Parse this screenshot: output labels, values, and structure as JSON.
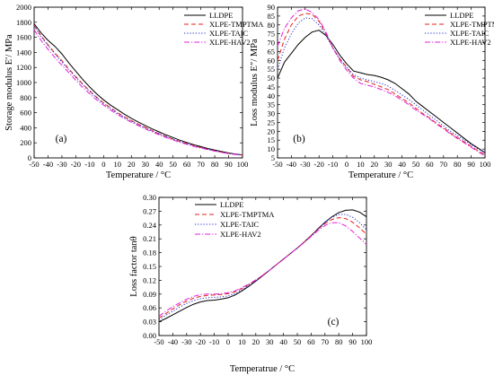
{
  "colors": {
    "LLDPE": "#000000",
    "XLPE-TMPTMA": "#e8201a",
    "XLPE-TAIC": "#1f2fd0",
    "XLPE-HAV2": "#e020d8"
  },
  "chart_data": [
    {
      "type": "line",
      "panel_label": "(a)",
      "xlabel": "Temperature / °C",
      "ylabel": "Storage modulus E′/ MPa",
      "xlim": [
        -50,
        100
      ],
      "ylim": [
        0,
        2000
      ],
      "xticks": [
        -50,
        -40,
        -30,
        -20,
        -10,
        0,
        10,
        20,
        30,
        40,
        50,
        60,
        70,
        80,
        90,
        100
      ],
      "yticks": [
        0,
        200,
        400,
        600,
        800,
        1000,
        1200,
        1400,
        1600,
        1800,
        2000
      ],
      "legend_position": "top-right",
      "x": [
        -50,
        -45,
        -40,
        -35,
        -30,
        -25,
        -20,
        -15,
        -10,
        -5,
        0,
        5,
        10,
        15,
        20,
        25,
        30,
        35,
        40,
        45,
        50,
        55,
        60,
        65,
        70,
        75,
        80,
        85,
        90,
        95,
        100
      ],
      "series": [
        {
          "name": "LLDPE",
          "style": "solid",
          "values": [
            1780,
            1660,
            1560,
            1480,
            1380,
            1260,
            1150,
            1040,
            940,
            850,
            770,
            700,
            640,
            580,
            525,
            475,
            430,
            385,
            345,
            305,
            270,
            235,
            205,
            175,
            150,
            125,
            105,
            85,
            65,
            50,
            40
          ]
        },
        {
          "name": "XLPE-TMPTMA",
          "style": "dashed",
          "values": [
            1760,
            1620,
            1500,
            1390,
            1290,
            1180,
            1080,
            980,
            890,
            805,
            730,
            665,
            600,
            545,
            495,
            448,
            405,
            362,
            322,
            285,
            250,
            218,
            190,
            163,
            138,
            115,
            95,
            77,
            60,
            48,
            38
          ]
        },
        {
          "name": "XLPE-TAIC",
          "style": "dotted",
          "values": [
            1750,
            1610,
            1490,
            1380,
            1270,
            1165,
            1065,
            970,
            880,
            795,
            720,
            655,
            592,
            538,
            488,
            442,
            400,
            358,
            318,
            282,
            248,
            216,
            188,
            161,
            137,
            114,
            94,
            76,
            60,
            47,
            37
          ]
        },
        {
          "name": "XLPE-HAV2",
          "style": "dashdot",
          "values": [
            1700,
            1560,
            1440,
            1330,
            1230,
            1130,
            1030,
            935,
            850,
            770,
            700,
            635,
            575,
            522,
            473,
            428,
            385,
            345,
            306,
            270,
            237,
            207,
            180,
            154,
            131,
            109,
            90,
            73,
            57,
            45,
            35
          ]
        }
      ]
    },
    {
      "type": "line",
      "panel_label": "(b)",
      "xlabel": "Temperature / °C",
      "ylabel": "Loss modulus E″/ MPa",
      "xlim": [
        -50,
        100
      ],
      "ylim": [
        5,
        90
      ],
      "xticks": [
        -50,
        -40,
        -30,
        -20,
        -10,
        0,
        10,
        20,
        30,
        40,
        50,
        60,
        70,
        80,
        90,
        100
      ],
      "yticks": [
        5,
        10,
        15,
        20,
        25,
        30,
        35,
        40,
        45,
        50,
        55,
        60,
        65,
        70,
        75,
        80,
        85,
        90
      ],
      "legend_position": "top-right",
      "x": [
        -50,
        -45,
        -40,
        -35,
        -30,
        -25,
        -20,
        -15,
        -10,
        -5,
        0,
        5,
        10,
        15,
        20,
        25,
        30,
        35,
        40,
        45,
        50,
        55,
        60,
        65,
        70,
        75,
        80,
        85,
        90,
        95,
        100
      ],
      "series": [
        {
          "name": "LLDPE",
          "style": "solid",
          "values": [
            50,
            59,
            64,
            69,
            73,
            76,
            77,
            74,
            69,
            63,
            58,
            54,
            53,
            52,
            51.5,
            50.5,
            49,
            47,
            44,
            41,
            37,
            34,
            31,
            28,
            25,
            22,
            19,
            16,
            13,
            10.5,
            8
          ]
        },
        {
          "name": "XLPE-TMPTMA",
          "style": "dashed",
          "values": [
            60,
            72,
            80,
            85,
            86.5,
            86,
            82,
            75,
            67,
            61,
            56,
            51,
            49,
            48,
            46.5,
            45,
            43.5,
            41,
            38.5,
            36,
            33,
            30,
            27.5,
            24.5,
            22,
            19,
            16.5,
            14,
            11.5,
            9,
            7
          ]
        },
        {
          "name": "XLPE-TAIC",
          "style": "dotted",
          "values": [
            55,
            67,
            75,
            81,
            84,
            83.5,
            80,
            74,
            67,
            61,
            56,
            52,
            50,
            49,
            48,
            47,
            45.5,
            43,
            40.5,
            38,
            35,
            32,
            29,
            26,
            23,
            20,
            17.5,
            15,
            12.5,
            10,
            8
          ]
        },
        {
          "name": "XLPE-HAV2",
          "style": "dashdot",
          "values": [
            68,
            78,
            84,
            88,
            89,
            87,
            83,
            76,
            67,
            60,
            54.5,
            50,
            47,
            46,
            45,
            43.5,
            42,
            40,
            37.5,
            35,
            32,
            29.5,
            27,
            24,
            21.5,
            18.5,
            16,
            13.5,
            11,
            8.5,
            6
          ]
        }
      ]
    },
    {
      "type": "line",
      "panel_label": "(c)",
      "xlabel": "Temperatrue / °C",
      "ylabel": "Loss factor  tanθ",
      "xlim": [
        -50,
        100
      ],
      "ylim": [
        0,
        0.3
      ],
      "xticks": [
        -50,
        -40,
        -30,
        -20,
        -10,
        0,
        10,
        20,
        30,
        40,
        50,
        60,
        70,
        80,
        90,
        100
      ],
      "yticks": [
        0.0,
        0.03,
        0.06,
        0.09,
        0.12,
        0.15,
        0.18,
        0.21,
        0.24,
        0.27,
        0.3
      ],
      "ytick_labels": [
        "0.00",
        "0.03",
        "0.06",
        "0.09",
        "0.12",
        "0.15",
        "0.18",
        "0.21",
        "0.24",
        "0.27",
        "0.30"
      ],
      "legend_position": "top-left",
      "x": [
        -50,
        -45,
        -40,
        -35,
        -30,
        -25,
        -20,
        -15,
        -10,
        -5,
        0,
        5,
        10,
        15,
        20,
        25,
        30,
        35,
        40,
        45,
        50,
        55,
        60,
        65,
        70,
        75,
        80,
        85,
        90,
        95,
        100
      ],
      "series": [
        {
          "name": "LLDPE",
          "style": "solid",
          "values": [
            0.03,
            0.037,
            0.045,
            0.053,
            0.061,
            0.068,
            0.073,
            0.076,
            0.077,
            0.079,
            0.082,
            0.088,
            0.097,
            0.107,
            0.118,
            0.13,
            0.142,
            0.154,
            0.166,
            0.178,
            0.19,
            0.203,
            0.217,
            0.232,
            0.246,
            0.258,
            0.267,
            0.272,
            0.273,
            0.268,
            0.258
          ]
        },
        {
          "name": "XLPE-TMPTMA",
          "style": "dashed",
          "values": [
            0.038,
            0.048,
            0.058,
            0.067,
            0.075,
            0.081,
            0.085,
            0.087,
            0.088,
            0.089,
            0.091,
            0.095,
            0.102,
            0.111,
            0.12,
            0.131,
            0.142,
            0.154,
            0.166,
            0.178,
            0.19,
            0.203,
            0.217,
            0.231,
            0.243,
            0.252,
            0.256,
            0.254,
            0.246,
            0.234,
            0.22
          ]
        },
        {
          "name": "XLPE-TAIC",
          "style": "dotted",
          "values": [
            0.035,
            0.044,
            0.053,
            0.062,
            0.07,
            0.076,
            0.08,
            0.082,
            0.083,
            0.084,
            0.086,
            0.091,
            0.099,
            0.109,
            0.119,
            0.13,
            0.142,
            0.154,
            0.166,
            0.178,
            0.19,
            0.203,
            0.217,
            0.232,
            0.246,
            0.257,
            0.263,
            0.263,
            0.257,
            0.245,
            0.23
          ]
        },
        {
          "name": "XLPE-HAV2",
          "style": "dashdot",
          "values": [
            0.042,
            0.053,
            0.063,
            0.071,
            0.079,
            0.085,
            0.089,
            0.09,
            0.09,
            0.091,
            0.093,
            0.097,
            0.104,
            0.112,
            0.121,
            0.131,
            0.142,
            0.154,
            0.166,
            0.178,
            0.19,
            0.202,
            0.215,
            0.228,
            0.239,
            0.245,
            0.245,
            0.238,
            0.226,
            0.212,
            0.198
          ]
        }
      ]
    }
  ]
}
